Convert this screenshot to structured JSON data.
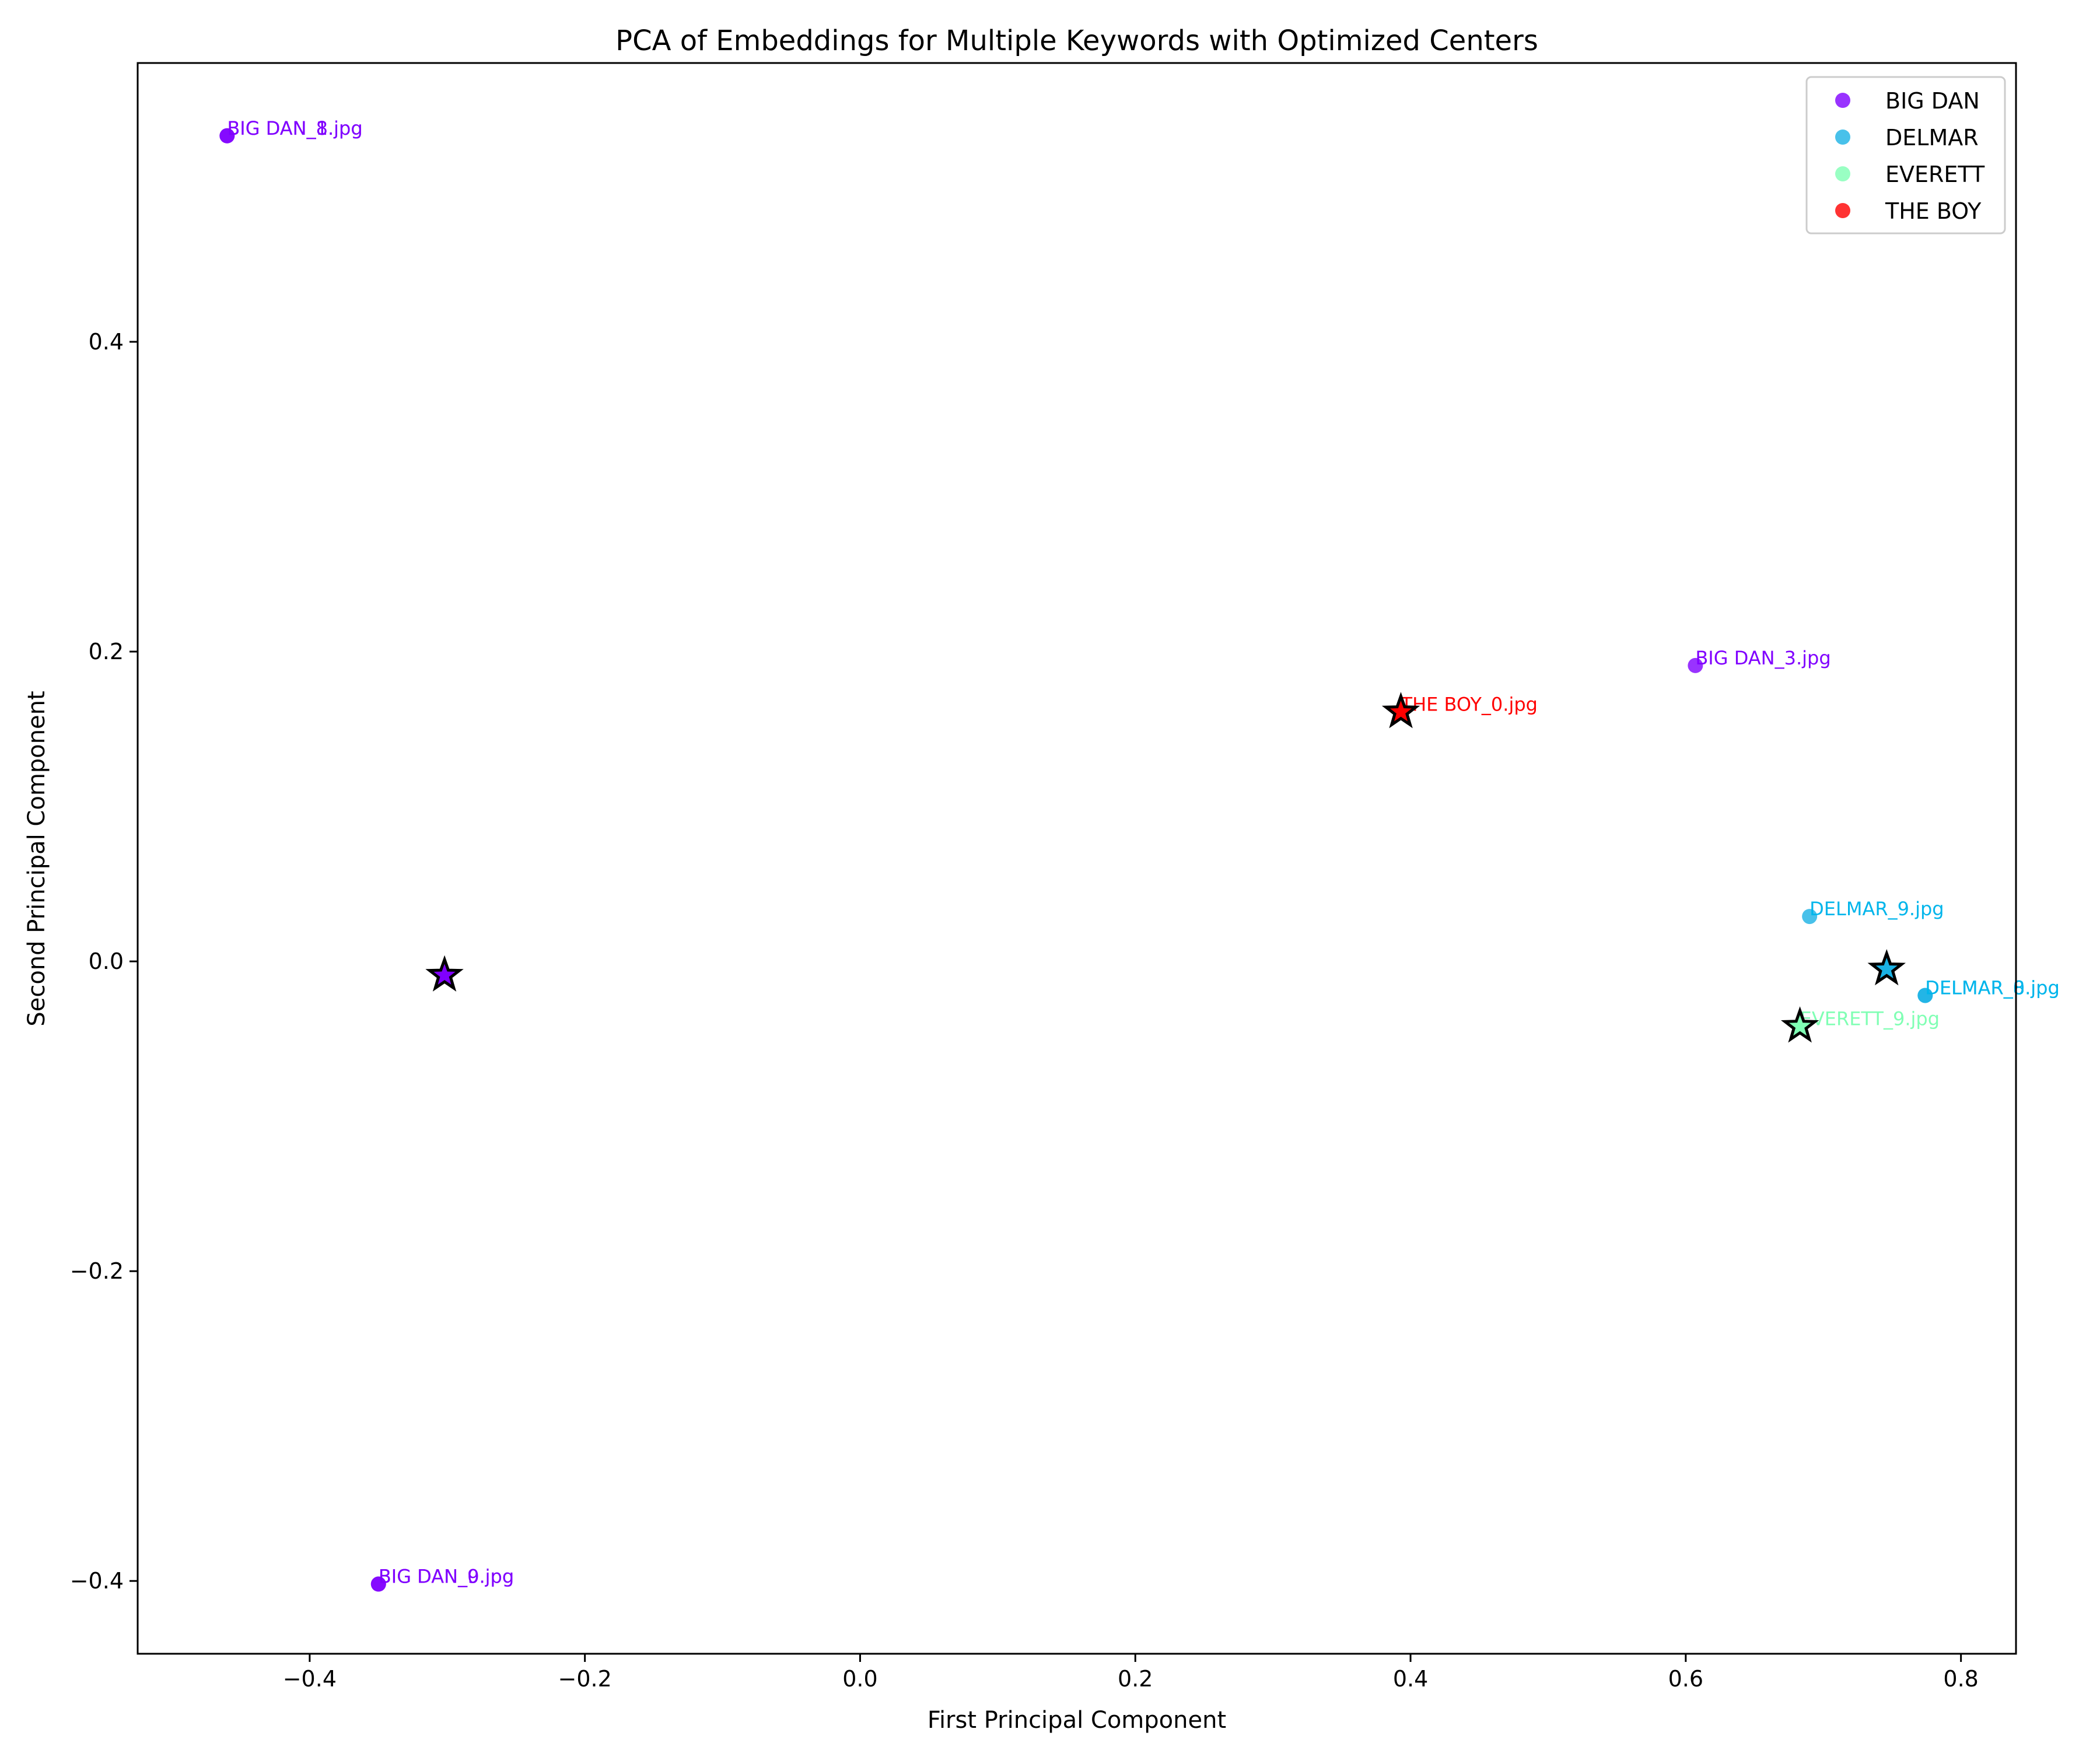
{
  "chart_data": {
    "type": "scatter",
    "title": "PCA of Embeddings for Multiple Keywords with Optimized Centers",
    "xlabel": "First Principal Component",
    "ylabel": "Second Principal Component",
    "xlim": [
      -0.525,
      0.84
    ],
    "ylim": [
      -0.447,
      0.58
    ],
    "xticks": [
      -0.4,
      -0.2,
      0.0,
      0.2,
      0.4,
      0.6,
      0.8
    ],
    "yticks": [
      -0.4,
      -0.2,
      0.0,
      0.2,
      0.4
    ],
    "xtick_labels": [
      "−0.4",
      "−0.2",
      "0.0",
      "0.2",
      "0.4",
      "0.6",
      "0.8"
    ],
    "ytick_labels": [
      "−0.4",
      "−0.2",
      "0.0",
      "0.2",
      "0.4"
    ],
    "grid": false,
    "legend_position": "top-right",
    "series": [
      {
        "name": "BIG DAN",
        "color": "#8000ff",
        "points": [
          {
            "x": -0.46,
            "y": 0.533,
            "label": "BIG DAN_1.jpg"
          },
          {
            "x": -0.46,
            "y": 0.533,
            "label": "BIG DAN_8.jpg"
          },
          {
            "x": 0.607,
            "y": 0.191,
            "label": "BIG DAN_3.jpg"
          },
          {
            "x": -0.35,
            "y": -0.402,
            "label": "BIG DAN_0.jpg"
          },
          {
            "x": -0.35,
            "y": -0.402,
            "label": "BIG DAN_9.jpg"
          }
        ],
        "center": {
          "x": -0.302,
          "y": -0.009
        }
      },
      {
        "name": "DELMAR",
        "color": "#1ab2e5",
        "points": [
          {
            "x": 0.69,
            "y": 0.029,
            "label": "DELMAR_9.jpg"
          },
          {
            "x": 0.774,
            "y": -0.022,
            "label": "DELMAR_0.jpg"
          },
          {
            "x": 0.774,
            "y": -0.022,
            "label": "DELMAR_8.jpg"
          }
        ],
        "center": {
          "x": 0.746,
          "y": -0.005
        }
      },
      {
        "name": "EVERETT",
        "color": "#80ffb4",
        "points": [
          {
            "x": 0.683,
            "y": -0.042,
            "label": "EVERETT_9.jpg"
          }
        ],
        "center": {
          "x": 0.683,
          "y": -0.042
        }
      },
      {
        "name": "THE BOY",
        "color": "#ff0000",
        "points": [
          {
            "x": 0.393,
            "y": 0.161,
            "label": "THE BOY_0.jpg"
          }
        ],
        "center": {
          "x": 0.393,
          "y": 0.161
        }
      }
    ],
    "label_colors": {
      "BIG DAN": "#8000ff",
      "DELMAR": "#00b5eb",
      "EVERETT": "#80ffb4",
      "THE BOY": "#ff0000"
    }
  }
}
